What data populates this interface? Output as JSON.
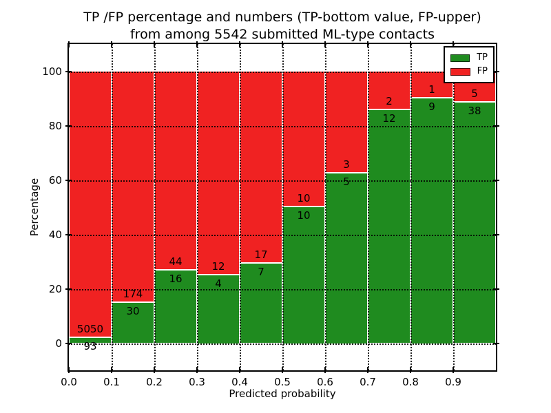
{
  "chart_data": {
    "type": "bar",
    "stacked": true,
    "orientation": "vertical",
    "title": "TP /FP percentage and numbers (TP-bottom value, FP-upper) from among 5542 submitted ML-type contacts",
    "title_line1": "TP /FP percentage and numbers (TP-bottom value, FP-upper)",
    "title_line2": "from among 5542 submitted ML-type contacts",
    "xlabel": "Predicted probability",
    "ylabel": "Percentage",
    "xlim": [
      0.0,
      1.0
    ],
    "ylim": [
      -10,
      110
    ],
    "x_tick_values": [
      0.0,
      0.1,
      0.2,
      0.3,
      0.4,
      0.5,
      0.6,
      0.7,
      0.8,
      0.9
    ],
    "x_tick_labels": [
      "0.0",
      "0.1",
      "0.2",
      "0.3",
      "0.4",
      "0.5",
      "0.6",
      "0.7",
      "0.8",
      "0.9"
    ],
    "y_tick_values": [
      0,
      20,
      40,
      60,
      80,
      100
    ],
    "y_tick_labels": [
      "0",
      "20",
      "40",
      "60",
      "80",
      "100"
    ],
    "grid": {
      "visible": true,
      "style": "dotted",
      "color": "#000000",
      "above_bars": true
    },
    "bin_edges": [
      0.0,
      0.1,
      0.2,
      0.3,
      0.4,
      0.5,
      0.6,
      0.7,
      0.8,
      0.9,
      1.0
    ],
    "series": [
      {
        "name": "TP",
        "color": "#1f8b1f",
        "counts": [
          93,
          30,
          16,
          4,
          7,
          10,
          5,
          12,
          9,
          38
        ]
      },
      {
        "name": "FP",
        "color": "#f02222",
        "counts": [
          5050,
          174,
          44,
          12,
          17,
          10,
          3,
          2,
          1,
          5
        ]
      }
    ],
    "tp_percent": [
      1.81,
      14.71,
      26.67,
      25.0,
      29.17,
      50.0,
      62.5,
      85.71,
      90.0,
      88.37
    ],
    "fp_percent": [
      98.19,
      85.29,
      73.33,
      75.0,
      70.83,
      50.0,
      37.5,
      14.29,
      10.0,
      11.63
    ],
    "total_contacts": 5542,
    "legend": {
      "position": "upper right",
      "entries": [
        {
          "label": "TP",
          "color": "#1f8b1f"
        },
        {
          "label": "FP",
          "color": "#f02222"
        }
      ]
    }
  }
}
